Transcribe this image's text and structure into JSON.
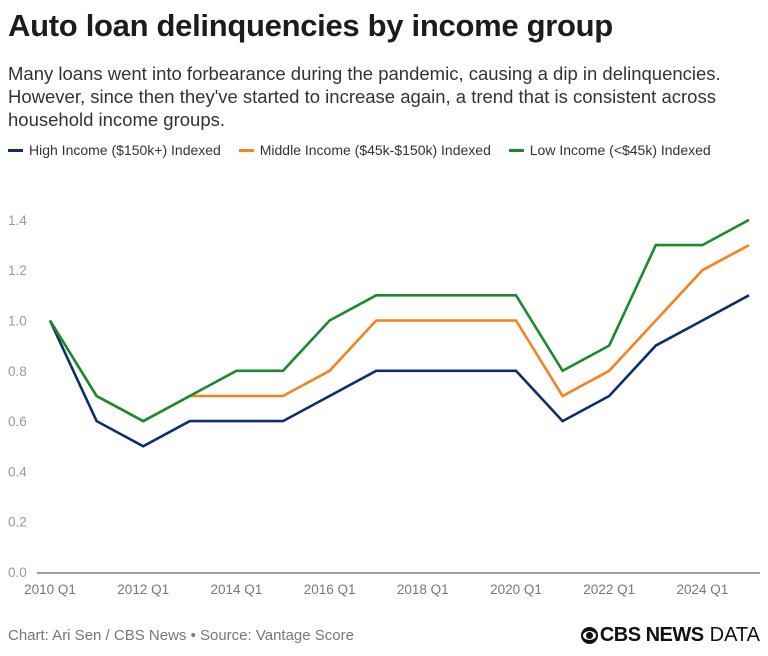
{
  "header": {
    "title": "Auto loan delinquencies by income group",
    "subtitle": "Many loans went into forbearance during the pandemic, causing a dip in delinquencies. However, since then they've started to increase again, a trend that is consistent across household income groups."
  },
  "legend": {
    "items": [
      {
        "label": "High Income ($150k+) Indexed",
        "color": "#0b2f6b"
      },
      {
        "label": "Middle Income ($45k-$150k) Indexed",
        "color": "#f5821f"
      },
      {
        "label": "Low Income (<$45k) Indexed",
        "color": "#1a8a2e"
      }
    ]
  },
  "footer": {
    "source": "Chart: Ari Sen / CBS News • Source: Vantage Score",
    "brand_bold": "CBS NEWS",
    "brand_light": "DATA"
  },
  "chart_data": {
    "type": "line",
    "title": "Auto loan delinquencies by income group",
    "xlabel": "",
    "ylabel": "",
    "x": [
      "2010 Q1",
      "2011 Q1",
      "2012 Q1",
      "2013 Q1",
      "2014 Q1",
      "2015 Q1",
      "2016 Q1",
      "2017 Q1",
      "2018 Q1",
      "2019 Q1",
      "2020 Q1",
      "2021 Q1",
      "2022 Q1",
      "2023 Q1",
      "2024 Q1",
      "2025 Q1"
    ],
    "x_tick_labels": [
      "2010 Q1",
      "2012 Q1",
      "2014 Q1",
      "2016 Q1",
      "2018 Q1",
      "2020 Q1",
      "2022 Q1",
      "2024 Q1"
    ],
    "y_tick_labels": [
      "0.0",
      "0.2",
      "0.4",
      "0.6",
      "0.8",
      "1.0",
      "1.2",
      "1.4"
    ],
    "ylim": [
      0,
      1.4
    ],
    "grid": false,
    "legend_position": "top",
    "series": [
      {
        "name": "High Income ($150k+) Indexed",
        "color": "#0b2f6b",
        "values": [
          1.0,
          0.6,
          0.5,
          0.6,
          0.6,
          0.6,
          0.7,
          0.8,
          0.8,
          0.8,
          0.8,
          0.6,
          0.7,
          0.9,
          1.0,
          1.1
        ]
      },
      {
        "name": "Middle Income ($45k-$150k) Indexed",
        "color": "#f5821f",
        "values": [
          1.0,
          0.7,
          0.6,
          0.7,
          0.7,
          0.7,
          0.8,
          1.0,
          1.0,
          1.0,
          1.0,
          0.7,
          0.8,
          1.0,
          1.2,
          1.3
        ]
      },
      {
        "name": "Low Income (<$45k) Indexed",
        "color": "#1a8a2e",
        "values": [
          1.0,
          0.7,
          0.6,
          0.7,
          0.8,
          0.8,
          1.0,
          1.1,
          1.1,
          1.1,
          1.1,
          0.8,
          0.9,
          1.3,
          1.3,
          1.4
        ]
      }
    ]
  }
}
